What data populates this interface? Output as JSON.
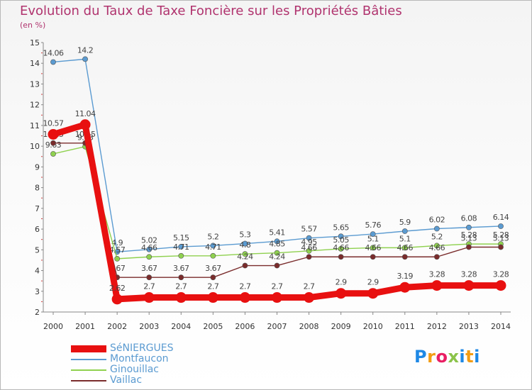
{
  "title": "Evolution du Taux de Taxe Foncière sur les Propriétés Bâties",
  "subtitle": "(en %)",
  "chart_data": {
    "type": "line",
    "x": [
      2000,
      2001,
      2002,
      2003,
      2004,
      2005,
      2006,
      2007,
      2008,
      2009,
      2010,
      2011,
      2012,
      2013,
      2014
    ],
    "ylim": [
      2,
      15
    ],
    "yticks": [
      2,
      3,
      4,
      5,
      6,
      7,
      8,
      9,
      10,
      11,
      12,
      13,
      14,
      15
    ],
    "series": [
      {
        "name": "Montfaucon",
        "color": "#5b9bd1",
        "values": [
          14.06,
          14.2,
          4.9,
          5.02,
          5.15,
          5.2,
          5.3,
          5.41,
          5.57,
          5.65,
          5.76,
          5.9,
          6.02,
          6.08,
          6.14
        ],
        "labels": [
          "14.06",
          "14.2",
          "4.9",
          "5.02",
          "5.15",
          "5.2",
          "5.3",
          "5.41",
          "5.57",
          "5.65",
          "5.76",
          "5.9",
          "6.02",
          "6.08",
          "6.14"
        ]
      },
      {
        "name": "Ginouillac",
        "color": "#8fd14f",
        "values": [
          9.63,
          9.98,
          4.57,
          4.66,
          4.71,
          4.71,
          4.8,
          4.85,
          4.95,
          5.05,
          5.1,
          5.1,
          5.2,
          5.28,
          5.28
        ],
        "labels": [
          "9.63",
          "9.98",
          "4.57",
          "4.66",
          "4.71",
          "4.71",
          "4.8",
          "4.85",
          "4.95",
          "5.05",
          "5.1",
          "5.1",
          "5.2",
          "5.28",
          "5.28"
        ]
      },
      {
        "name": "Vaillac",
        "color": "#7a2c2c",
        "values": [
          10.15,
          10.15,
          3.67,
          3.67,
          3.67,
          3.67,
          4.24,
          4.24,
          4.66,
          4.66,
          4.66,
          4.66,
          4.66,
          5.13,
          5.13
        ],
        "labels": [
          "10.15",
          "10.15",
          "3.67",
          "3.67",
          "3.67",
          "3.67",
          "4.24",
          "4.24",
          "4.66",
          "4.66",
          "4.66",
          "4.66",
          "4.66",
          "5.13",
          "5.13"
        ]
      },
      {
        "name": "SéNIERGUES",
        "color": "#e81010",
        "values": [
          10.57,
          11.04,
          2.62,
          2.7,
          2.7,
          2.7,
          2.7,
          2.7,
          2.7,
          2.9,
          2.9,
          3.19,
          3.28,
          3.28,
          3.28
        ],
        "labels": [
          "10.57",
          "11.04",
          "2.62",
          "2.7",
          "2.7",
          "2.7",
          "2.7",
          "2.7",
          "2.7",
          "2.9",
          "2.9",
          "3.19",
          "3.28",
          "3.28",
          "3.28"
        ]
      }
    ],
    "legend": [
      "SéNIERGUES",
      "Montfaucon",
      "Ginouillac",
      "Vaillac"
    ]
  },
  "legend_colors": {
    "SéNIERGUES": "#e81010",
    "Montfaucon": "#5b9bd1",
    "Ginouillac": "#8fd14f",
    "Vaillac": "#7a2c2c"
  },
  "logo": {
    "letters": [
      "P",
      "r",
      "o",
      "x",
      "i",
      "t",
      "i"
    ],
    "colors": [
      "#1e88e5",
      "#f39c12",
      "#e91e63",
      "#8bc34a",
      "#1e88e5",
      "#f39c12",
      "#1e88e5"
    ]
  }
}
